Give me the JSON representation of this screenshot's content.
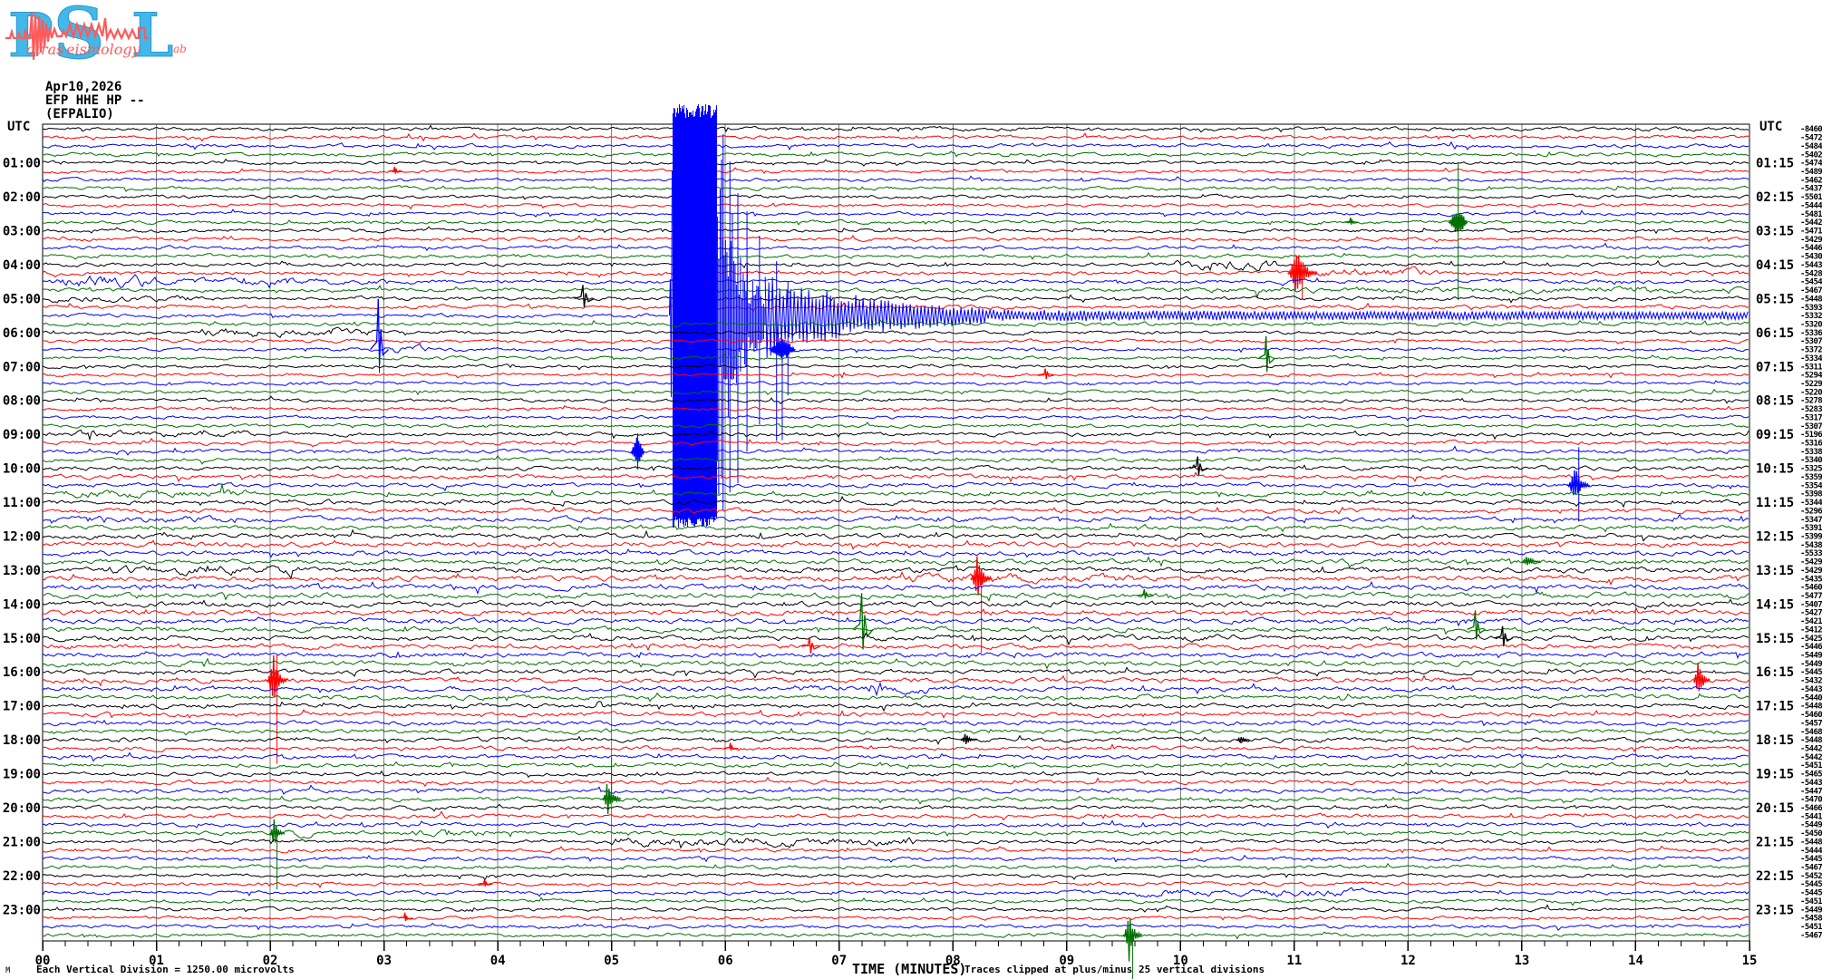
{
  "logo": {
    "letters": [
      "P",
      "S",
      "L"
    ],
    "words": [
      "atras",
      "eismology",
      "ab"
    ],
    "colors": {
      "letters": "#43b7e8",
      "wave": "#ff5a5a"
    }
  },
  "header": {
    "date": "Apr10,2026",
    "station": "EFP HHE HP --",
    "station_name": "(EFPALIO)"
  },
  "axes": {
    "left_header": "UTC",
    "right_header": "UTC",
    "x_axis_title": "TIME (MINUTES)",
    "x_tick_labels": [
      "00",
      "01",
      "02",
      "03",
      "04",
      "05",
      "06",
      "07",
      "08",
      "09",
      "10",
      "11",
      "12",
      "13",
      "14",
      "15"
    ],
    "left_labels": [
      "01:00",
      "02:00",
      "03:00",
      "04:00",
      "05:00",
      "06:00",
      "07:00",
      "08:00",
      "09:00",
      "10:00",
      "11:00",
      "12:00",
      "13:00",
      "14:00",
      "15:00",
      "16:00",
      "17:00",
      "18:00",
      "19:00",
      "20:00",
      "21:00",
      "22:00",
      "23:00"
    ],
    "right_labels": [
      "01:15",
      "02:15",
      "03:15",
      "04:15",
      "05:15",
      "06:15",
      "07:15",
      "08:15",
      "09:15",
      "10:15",
      "11:15",
      "12:15",
      "13:15",
      "14:15",
      "15:15",
      "16:15",
      "17:15",
      "18:15",
      "19:15",
      "20:15",
      "21:15",
      "22:15",
      "23:15"
    ]
  },
  "footer": {
    "corner_mark": "M",
    "scale_note": "Each Vertical Division = 1250.00 microvolts",
    "clip_note": "Traces clipped at plus/minus 25 vertical divisions"
  },
  "chart_data": {
    "type": "line",
    "subtype": "helicorder-seismogram",
    "title": "EFP HHE HP -- (EFPALIO) Apr10,2026",
    "xlabel": "TIME (MINUTES)",
    "xlim": [
      0,
      15
    ],
    "rows": 96,
    "hours": 24,
    "minutes_per_row": 15,
    "row_colors_cycle": [
      "#000000",
      "#ff0000",
      "#0000ff",
      "#007000"
    ],
    "grid_color": "#808080",
    "trace_baseline_values": [
      "-8460",
      "-5472",
      "-5484",
      "-5402",
      "-5474",
      "-5489",
      "-5462",
      "-5437",
      "-5501",
      "-5444",
      "-5481",
      "-5442",
      "-5471",
      "-5429",
      "-5446",
      "-5430",
      "-5443",
      "-5428",
      "-5454",
      "-5467",
      "-5448",
      "-5393",
      "-5332",
      "-5320",
      "-5336",
      "-5307",
      "-5372",
      "-5334",
      "-5311",
      "-5294",
      "-5229",
      "-5220",
      "-5278",
      "-5283",
      "-5317",
      "-5307",
      "-5196",
      "-5316",
      "-5338",
      "-5340",
      "-5325",
      "-5359",
      "-5354",
      "-5398",
      "-5344",
      "-5296",
      "-5347",
      "-5391",
      "-5399",
      "-5438",
      "-5533",
      "-5429",
      "-5429",
      "-5435",
      "-5460",
      "-5477",
      "-5407",
      "-5427",
      "-5421",
      "-5412",
      "-5425",
      "-5446",
      "-5449",
      "-5449",
      "-5445",
      "-5432",
      "-5443",
      "-5440",
      "-5448",
      "-5460",
      "-5457",
      "-5468",
      "-5448",
      "-5442",
      "-5442",
      "-5451",
      "-5465",
      "-5443",
      "-5447",
      "-5470",
      "-5466",
      "-5441",
      "-5449",
      "-5450",
      "-5448",
      "-5444",
      "-5445",
      "-5467",
      "-5452",
      "-5445",
      "-5445",
      "-5451",
      "-5449",
      "-5458",
      "-5451",
      "-5467"
    ],
    "noise_amp_by_hour": [
      1.6,
      1.5,
      1.5,
      1.6,
      1.7,
      1.7,
      1.5,
      1.5,
      1.5,
      1.7,
      1.9,
      2.0,
      2.2,
      2.4,
      2.3,
      2.2,
      2.1,
      2.0,
      1.9,
      1.8,
      1.8,
      1.7,
      1.6,
      1.6
    ],
    "noise_segments": [
      {
        "row": 16,
        "m0": 9.95,
        "m1": 10.85,
        "amp": 4.5
      },
      {
        "row": 17,
        "m0": 11.15,
        "m1": 12.3,
        "amp": 4.0
      },
      {
        "row": 18,
        "m0": 0.05,
        "m1": 1.05,
        "amp": 5.5
      },
      {
        "row": 18,
        "m0": 1.05,
        "m1": 3.0,
        "amp": 2.8
      },
      {
        "row": 19,
        "m0": 10.0,
        "m1": 15.0,
        "amp": 2.6
      },
      {
        "row": 20,
        "m0": 0.0,
        "m1": 1.3,
        "amp": 3.0
      },
      {
        "row": 24,
        "m0": 1.4,
        "m1": 1.9,
        "amp": 4.2
      },
      {
        "row": 24,
        "m0": 2.05,
        "m1": 2.9,
        "amp": 3.4
      },
      {
        "row": 26,
        "m0": 3.0,
        "m1": 3.4,
        "amp": 4.5
      },
      {
        "row": 36,
        "m0": 0.3,
        "m1": 1.8,
        "amp": 3.2
      },
      {
        "row": 43,
        "m0": 0.2,
        "m1": 1.8,
        "amp": 3.8
      },
      {
        "row": 46,
        "m0": 0.25,
        "m1": 1.6,
        "amp": 2.8
      },
      {
        "row": 52,
        "m0": 0.5,
        "m1": 2.2,
        "amp": 4.3
      },
      {
        "row": 53,
        "m0": 7.4,
        "m1": 9.6,
        "amp": 4.0
      },
      {
        "row": 60,
        "m0": 8.0,
        "m1": 10.5,
        "amp": 3.0
      },
      {
        "row": 66,
        "m0": 6.6,
        "m1": 7.8,
        "amp": 3.6
      },
      {
        "row": 83,
        "m0": 2.1,
        "m1": 2.35,
        "amp": 3.5
      },
      {
        "row": 83,
        "m0": 3.25,
        "m1": 3.9,
        "amp": 3.5
      },
      {
        "row": 84,
        "m0": 5.0,
        "m1": 7.7,
        "amp": 4.2
      },
      {
        "row": 90,
        "m0": 9.3,
        "m1": 11.6,
        "amp": 3.4
      }
    ],
    "events": [
      {
        "row": 5,
        "minute": 3.1,
        "kind": "spike",
        "up": 5,
        "down": 3,
        "w": 3
      },
      {
        "row": 11,
        "minute": 11.5,
        "kind": "spike",
        "up": 5,
        "down": 3,
        "w": 3
      },
      {
        "row": 11,
        "minute": 12.44,
        "kind": "blob",
        "up": 13,
        "down": 13,
        "w": 10,
        "vup": 66,
        "vdown": 86
      },
      {
        "row": 17,
        "minute": 11.07,
        "kind": "burst",
        "up": 34,
        "down": 30,
        "w": 16,
        "vdown": 28
      },
      {
        "row": 20,
        "minute": 4.76,
        "kind": "spike",
        "up": 15,
        "down": 11,
        "w": 6
      },
      {
        "row": 26,
        "minute": 2.96,
        "kind": "spike",
        "up": 56,
        "down": 20,
        "w": 5,
        "vdown": 26
      },
      {
        "row": 26,
        "minute": 6.5,
        "kind": "blob",
        "up": 12,
        "down": 12,
        "w": 14,
        "vdown": 100
      },
      {
        "row": 27,
        "minute": 10.76,
        "kind": "spike",
        "up": 24,
        "down": 18,
        "w": 4
      },
      {
        "row": 29,
        "minute": 8.82,
        "kind": "spike",
        "up": 7,
        "down": 5,
        "w": 4
      },
      {
        "row": 38,
        "minute": 5.23,
        "kind": "blob",
        "up": 16,
        "down": 14,
        "w": 7,
        "vup": 20,
        "vdown": 20
      },
      {
        "row": 40,
        "minute": 10.16,
        "kind": "spike",
        "up": 13,
        "down": 9,
        "w": 5
      },
      {
        "row": 42,
        "minute": 13.5,
        "kind": "burst",
        "up": 26,
        "down": 22,
        "w": 12,
        "vup": 42,
        "vdown": 40
      },
      {
        "row": 51,
        "minute": 13.08,
        "kind": "burst",
        "up": 9,
        "down": 5,
        "w": 10
      },
      {
        "row": 53,
        "minute": 8.25,
        "kind": "burst",
        "up": 27,
        "down": 24,
        "w": 12,
        "vdown": 82
      },
      {
        "row": 55,
        "minute": 9.69,
        "kind": "spike",
        "up": 7,
        "down": 4,
        "w": 4
      },
      {
        "row": 59,
        "minute": 7.21,
        "kind": "spike",
        "up": 40,
        "down": 26,
        "w": 6
      },
      {
        "row": 59,
        "minute": 12.6,
        "kind": "spike",
        "up": 21,
        "down": 13,
        "w": 5
      },
      {
        "row": 60,
        "minute": 12.84,
        "kind": "spike",
        "up": 13,
        "down": 11,
        "w": 5
      },
      {
        "row": 61,
        "minute": 6.75,
        "kind": "spike",
        "up": 10,
        "down": 9,
        "w": 5
      },
      {
        "row": 65,
        "minute": 2.06,
        "kind": "burst",
        "up": 36,
        "down": 32,
        "w": 11,
        "vup": 28,
        "vdown": 92
      },
      {
        "row": 65,
        "minute": 14.58,
        "kind": "burst",
        "up": 26,
        "down": 22,
        "w": 9
      },
      {
        "row": 72,
        "minute": 8.14,
        "kind": "burst",
        "up": 8,
        "down": 6,
        "w": 9
      },
      {
        "row": 72,
        "minute": 10.55,
        "kind": "burst",
        "up": 5,
        "down": 4,
        "w": 7
      },
      {
        "row": 73,
        "minute": 6.05,
        "kind": "spike",
        "up": 6,
        "down": 3,
        "w": 3
      },
      {
        "row": 79,
        "minute": 5.0,
        "kind": "burst",
        "up": 25,
        "down": 17,
        "w": 10,
        "vup": 46
      },
      {
        "row": 83,
        "minute": 2.06,
        "kind": "burst",
        "up": 19,
        "down": 15,
        "w": 8,
        "vdown": 62
      },
      {
        "row": 89,
        "minute": 3.89,
        "kind": "spike",
        "up": 5,
        "down": 3,
        "w": 3
      },
      {
        "row": 93,
        "minute": 3.19,
        "kind": "spike",
        "up": 6,
        "down": 4,
        "w": 3
      },
      {
        "row": 95,
        "minute": 9.58,
        "kind": "burst",
        "up": 26,
        "down": 30,
        "w": 10,
        "vdown": 58
      }
    ],
    "big_event": {
      "row": 22,
      "note": "large clipped arrival on the 05:30 UTC line",
      "onset_minute": 5.54,
      "band_end_minute": 5.93,
      "spiky_end_minute": 6.35,
      "coda_end_minute": 8.3,
      "clip_divisions": 25,
      "extra_spikes": [
        [
          5.98,
          200,
          215
        ],
        [
          6.04,
          170,
          195
        ],
        [
          6.11,
          135,
          185
        ],
        [
          6.19,
          115,
          150
        ],
        [
          6.3,
          88,
          120
        ],
        [
          6.45,
          60,
          138
        ],
        [
          6.55,
          38,
          88
        ]
      ]
    }
  }
}
